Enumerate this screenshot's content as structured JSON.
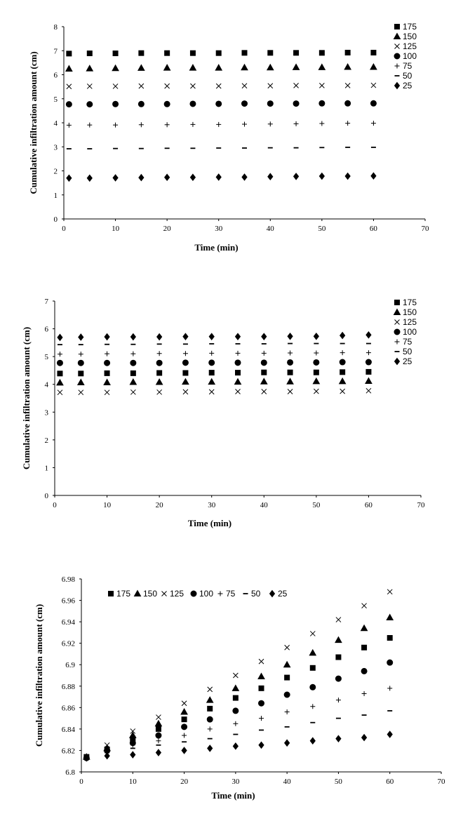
{
  "chart_data": [
    {
      "type": "scatter",
      "xlabel": "Time (min)",
      "ylabel": "Cumulative infiltration amount (cm)",
      "xlim": [
        0,
        70
      ],
      "ylim": [
        0,
        8
      ],
      "xticks": [
        "0",
        "10",
        "20",
        "30",
        "40",
        "50",
        "60",
        "70"
      ],
      "yticks": [
        "0",
        "1",
        "2",
        "3",
        "4",
        "5",
        "6",
        "7",
        "8"
      ],
      "legend_position": "right",
      "x": [
        1,
        5,
        10,
        15,
        20,
        25,
        30,
        35,
        40,
        45,
        50,
        55,
        60
      ],
      "series": [
        {
          "name": "175",
          "marker": "square",
          "values": [
            6.88,
            6.89,
            6.89,
            6.9,
            6.9,
            6.9,
            6.9,
            6.91,
            6.91,
            6.91,
            6.91,
            6.92,
            6.92
          ]
        },
        {
          "name": "150",
          "marker": "triangle",
          "values": [
            6.25,
            6.26,
            6.27,
            6.28,
            6.29,
            6.29,
            6.29,
            6.3,
            6.3,
            6.31,
            6.31,
            6.32,
            6.32
          ]
        },
        {
          "name": "125",
          "marker": "x",
          "values": [
            5.51,
            5.52,
            5.52,
            5.53,
            5.53,
            5.53,
            5.53,
            5.54,
            5.54,
            5.55,
            5.55,
            5.55,
            5.56
          ]
        },
        {
          "name": "100",
          "marker": "circle",
          "values": [
            4.77,
            4.77,
            4.78,
            4.78,
            4.78,
            4.79,
            4.79,
            4.8,
            4.8,
            4.8,
            4.81,
            4.81,
            4.81
          ]
        },
        {
          "name": "75",
          "marker": "plus",
          "values": [
            3.9,
            3.91,
            3.91,
            3.92,
            3.92,
            3.93,
            3.93,
            3.94,
            3.95,
            3.96,
            3.97,
            3.98,
            3.98
          ]
        },
        {
          "name": "50",
          "marker": "dash",
          "values": [
            2.92,
            2.92,
            2.93,
            2.93,
            2.94,
            2.94,
            2.95,
            2.95,
            2.96,
            2.96,
            2.97,
            2.98,
            2.98
          ]
        },
        {
          "name": "25",
          "marker": "diamond",
          "values": [
            1.7,
            1.7,
            1.71,
            1.72,
            1.73,
            1.73,
            1.74,
            1.74,
            1.76,
            1.77,
            1.78,
            1.78,
            1.79
          ]
        }
      ]
    },
    {
      "type": "scatter",
      "xlabel": "Time (min)",
      "ylabel": "Cumulative infiltration amount (cm)",
      "xlim": [
        0,
        70
      ],
      "ylim": [
        0,
        7
      ],
      "xticks": [
        "0",
        "10",
        "20",
        "30",
        "40",
        "50",
        "60",
        "70"
      ],
      "yticks": [
        "0",
        "1",
        "2",
        "3",
        "4",
        "5",
        "6",
        "7"
      ],
      "legend_position": "right",
      "x": [
        1,
        5,
        10,
        15,
        20,
        25,
        30,
        35,
        40,
        45,
        50,
        55,
        60
      ],
      "series": [
        {
          "name": "175",
          "marker": "square",
          "values": [
            4.39,
            4.39,
            4.4,
            4.4,
            4.41,
            4.41,
            4.42,
            4.42,
            4.43,
            4.43,
            4.43,
            4.44,
            4.45
          ]
        },
        {
          "name": "150",
          "marker": "triangle",
          "values": [
            4.06,
            4.07,
            4.07,
            4.08,
            4.08,
            4.09,
            4.09,
            4.09,
            4.1,
            4.1,
            4.11,
            4.11,
            4.12
          ]
        },
        {
          "name": "125",
          "marker": "x",
          "values": [
            3.71,
            3.71,
            3.71,
            3.72,
            3.72,
            3.73,
            3.73,
            3.74,
            3.74,
            3.74,
            3.75,
            3.75,
            3.77
          ]
        },
        {
          "name": "100",
          "marker": "circle",
          "values": [
            4.77,
            4.77,
            4.77,
            4.77,
            4.77,
            4.78,
            4.78,
            4.78,
            4.78,
            4.79,
            4.79,
            4.8,
            4.8
          ]
        },
        {
          "name": "75",
          "marker": "plus",
          "values": [
            5.09,
            5.09,
            5.1,
            5.1,
            5.11,
            5.11,
            5.12,
            5.12,
            5.12,
            5.13,
            5.13,
            5.14,
            5.14
          ]
        },
        {
          "name": "50",
          "marker": "dash",
          "values": [
            5.43,
            5.43,
            5.44,
            5.44,
            5.45,
            5.45,
            5.46,
            5.46,
            5.46,
            5.47,
            5.47,
            5.47,
            5.47
          ]
        },
        {
          "name": "25",
          "marker": "diamond",
          "values": [
            5.69,
            5.7,
            5.71,
            5.71,
            5.71,
            5.72,
            5.72,
            5.72,
            5.72,
            5.73,
            5.73,
            5.76,
            5.78
          ]
        }
      ]
    },
    {
      "type": "scatter",
      "xlabel": "Time (min)",
      "ylabel": "Cumulative infiltration amount (cm)",
      "xlim": [
        0,
        70
      ],
      "ylim": [
        6.8,
        6.98
      ],
      "xticks": [
        "0",
        "10",
        "20",
        "30",
        "40",
        "50",
        "60",
        "70"
      ],
      "yticks": [
        "6.8",
        "6.82",
        "6.84",
        "6.86",
        "6.88",
        "6.9",
        "6.92",
        "6.94",
        "6.96",
        "6.98"
      ],
      "legend_position": "top",
      "x": [
        1,
        5,
        10,
        15,
        20,
        25,
        30,
        35,
        40,
        45,
        50,
        55,
        60
      ],
      "series": [
        {
          "name": "175",
          "marker": "square",
          "values": [
            6.814,
            6.821,
            6.831,
            6.84,
            6.849,
            6.859,
            6.869,
            6.878,
            6.888,
            6.897,
            6.907,
            6.916,
            6.925
          ]
        },
        {
          "name": "150",
          "marker": "triangle",
          "values": [
            6.814,
            6.822,
            6.834,
            6.845,
            6.856,
            6.867,
            6.878,
            6.889,
            6.9,
            6.911,
            6.923,
            6.934,
            6.944
          ]
        },
        {
          "name": "125",
          "marker": "x",
          "values": [
            6.814,
            6.825,
            6.838,
            6.851,
            6.864,
            6.877,
            6.89,
            6.903,
            6.916,
            6.929,
            6.942,
            6.955,
            6.968
          ]
        },
        {
          "name": "100",
          "marker": "circle",
          "values": [
            6.813,
            6.82,
            6.827,
            6.834,
            6.842,
            6.849,
            6.857,
            6.864,
            6.872,
            6.879,
            6.887,
            6.894,
            6.902
          ]
        },
        {
          "name": "75",
          "marker": "plus",
          "values": [
            6.813,
            6.819,
            6.825,
            6.829,
            6.834,
            6.84,
            6.845,
            6.85,
            6.856,
            6.861,
            6.867,
            6.873,
            6.878
          ]
        },
        {
          "name": "50",
          "marker": "dash",
          "values": [
            6.813,
            6.818,
            6.822,
            6.825,
            6.828,
            6.831,
            6.835,
            6.839,
            6.842,
            6.846,
            6.85,
            6.853,
            6.857
          ]
        },
        {
          "name": "25",
          "marker": "diamond",
          "values": [
            6.813,
            6.815,
            6.816,
            6.818,
            6.82,
            6.822,
            6.824,
            6.825,
            6.827,
            6.829,
            6.831,
            6.832,
            6.835
          ]
        }
      ]
    }
  ]
}
